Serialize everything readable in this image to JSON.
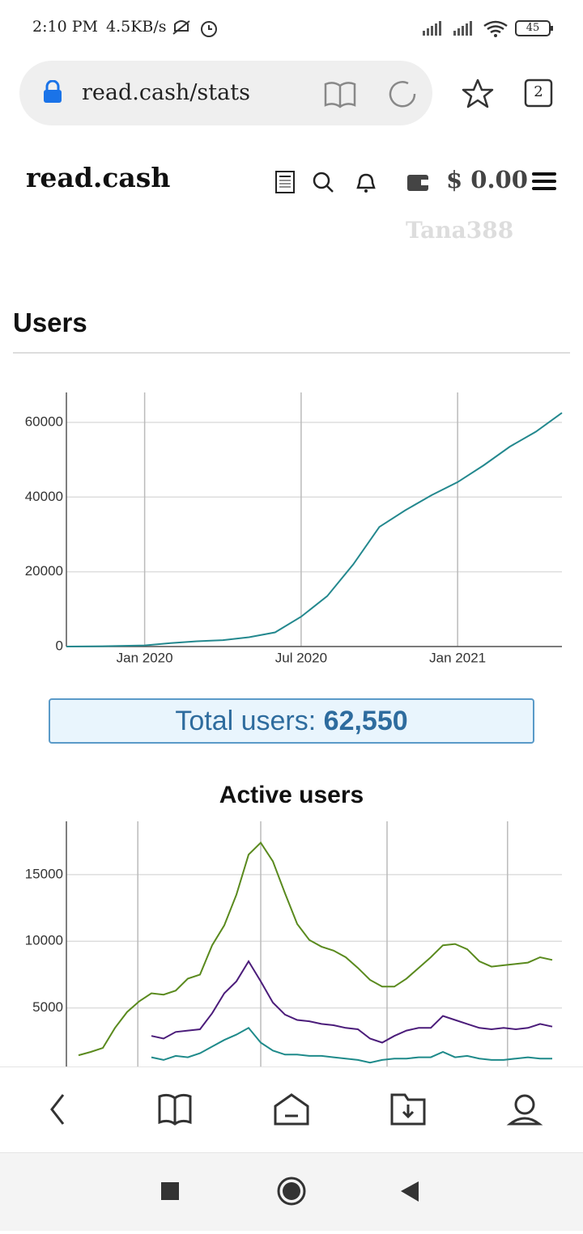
{
  "status_bar": {
    "time": "2:10 PM",
    "speed": "4.5KB/s",
    "battery": "45"
  },
  "browser": {
    "url": "read.cash/stats",
    "tabs": "2"
  },
  "site": {
    "logo": "read.cash",
    "balance": "$ 0.00",
    "username": "Tana388"
  },
  "section_title": "Users",
  "total": {
    "label": "Total users:",
    "value": "62,550"
  },
  "chart_data": [
    {
      "type": "line",
      "x": [
        "2019-10",
        "2019-11",
        "2019-12",
        "2020-01",
        "2020-02",
        "2020-03",
        "2020-04",
        "2020-05",
        "2020-06",
        "2020-07",
        "2020-08",
        "2020-09",
        "2020-10",
        "2020-11",
        "2020-12",
        "2021-01",
        "2021-02",
        "2021-03",
        "2021-04",
        "2021-05"
      ],
      "series": [
        {
          "color": "#23888e",
          "values": [
            0,
            50,
            150,
            300,
            900,
            1400,
            1700,
            2500,
            3800,
            8000,
            13500,
            22000,
            32000,
            36500,
            40500,
            44000,
            48500,
            53500,
            57500,
            62550
          ]
        }
      ],
      "xlim": [
        "2019-10",
        "2021-05"
      ],
      "xticks": [
        {
          "value": "2020-01",
          "label": "Jan 2020"
        },
        {
          "value": "2020-07",
          "label": "Jul 2020"
        },
        {
          "value": "2021-01",
          "label": "Jan 2021"
        }
      ],
      "ylim": [
        0,
        68000
      ],
      "yticks": [
        0,
        20000,
        40000,
        60000
      ],
      "grid": true
    },
    {
      "type": "line",
      "title": "Active users",
      "x": [
        2.5,
        5,
        7.5,
        10,
        12.5,
        15,
        17.5,
        20,
        22.5,
        25,
        27.5,
        30,
        32.5,
        35,
        37.5,
        40,
        42.5,
        45,
        47.5,
        50,
        52.5,
        55,
        57.5,
        60,
        62.5,
        65,
        67.5,
        70,
        72.5,
        75,
        77.5,
        80,
        82.5,
        85,
        87.5,
        90,
        92.5,
        95,
        97.5,
        100
      ],
      "series": [
        {
          "color": "#5a8a1e",
          "values": [
            1450,
            1700,
            2000,
            3500,
            4700,
            5500,
            6100,
            6000,
            6300,
            7200,
            7500,
            9700,
            11200,
            13500,
            16500,
            17400,
            16000,
            13600,
            11300,
            10100,
            9600,
            9300,
            8800,
            8000,
            7100,
            6600,
            6600,
            7200,
            8000,
            8800,
            9700,
            9800,
            9400,
            8500,
            8100,
            8200,
            8300,
            8400,
            8800,
            8600
          ]
        },
        {
          "color": "#4b1c7a",
          "values": [
            null,
            null,
            null,
            null,
            null,
            null,
            2900,
            2700,
            3200,
            3300,
            3400,
            4600,
            6100,
            7000,
            8500,
            7000,
            5400,
            4500,
            4100,
            4000,
            3800,
            3700,
            3500,
            3400,
            2700,
            2400,
            2900,
            3300,
            3500,
            3500,
            4400,
            4100,
            3800,
            3500,
            3400,
            3500,
            3400,
            3500,
            3800,
            3600
          ]
        },
        {
          "color": "#1e8a8a",
          "values": [
            null,
            null,
            null,
            null,
            null,
            null,
            1300,
            1100,
            1400,
            1300,
            1600,
            2100,
            2600,
            3000,
            3500,
            2400,
            1800,
            1500,
            1500,
            1400,
            1400,
            1300,
            1200,
            1100,
            900,
            1100,
            1200,
            1200,
            1300,
            1300,
            1700,
            1300,
            1400,
            1200,
            1100,
            1100,
            1200,
            1300,
            1200,
            1200
          ]
        }
      ],
      "xlim": [
        0,
        102
      ],
      "xgrid": [
        14.7,
        40,
        66,
        90.8
      ],
      "ylim": [
        0,
        19000
      ],
      "yticks": [
        5000,
        10000,
        15000
      ],
      "grid": true
    }
  ]
}
